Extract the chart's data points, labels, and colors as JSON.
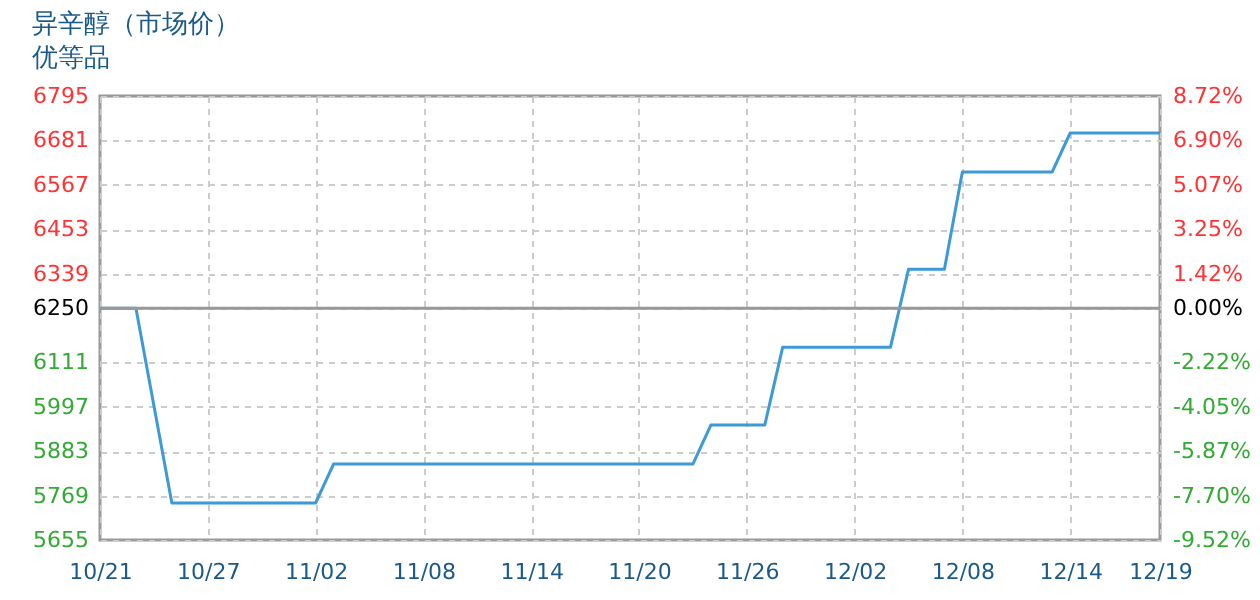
{
  "chart_data": {
    "type": "line",
    "title": "异辛醇（市场价）",
    "subtitle": "优等品",
    "x": [
      "--10-21",
      "--10-23",
      "--10-25",
      "--11-02",
      "--11-03",
      "--11-23",
      "--11-24",
      "--11-27",
      "--11-28",
      "--12-04",
      "--12-05",
      "--12-07",
      "--12-08",
      "--12-13",
      "--12-14",
      "--12-19"
    ],
    "series": [
      {
        "color": "#3d9ad6",
        "values": [
          6250,
          6250,
          5750,
          5750,
          5850,
          5850,
          5950,
          5950,
          6150,
          6150,
          6350,
          6350,
          6600,
          6600,
          6700,
          6700
        ]
      }
    ],
    "xlim": [
      "--10-21",
      "--12-19"
    ],
    "xticks": [
      {
        "value": "--10-21",
        "label": "10/21"
      },
      {
        "value": "--10-27",
        "label": "10/27"
      },
      {
        "value": "--11-02",
        "label": "11/02"
      },
      {
        "value": "--11-08",
        "label": "11/08"
      },
      {
        "value": "--11-14",
        "label": "11/14"
      },
      {
        "value": "--11-20",
        "label": "11/20"
      },
      {
        "value": "--11-26",
        "label": "11/26"
      },
      {
        "value": "--12-02",
        "label": "12/02"
      },
      {
        "value": "--12-08",
        "label": "12/08"
      },
      {
        "value": "--12-14",
        "label": "12/14"
      },
      {
        "value": "--12-19",
        "label": "12/19"
      }
    ],
    "ylim": [
      5655,
      6795
    ],
    "yticks": [
      5655,
      5769,
      5883,
      5997,
      6111,
      6250,
      6339,
      6453,
      6567,
      6681,
      6795
    ],
    "y2lim": [
      -9.52,
      8.72
    ],
    "y2ticks": [
      {
        "value": -9.52,
        "label": "-9.52%"
      },
      {
        "value": -7.7,
        "label": "-7.70%"
      },
      {
        "value": -5.87,
        "label": "-5.87%"
      },
      {
        "value": -4.05,
        "label": "-4.05%"
      },
      {
        "value": -2.22,
        "label": "-2.22%"
      },
      {
        "value": 0,
        "label": "0.00%"
      },
      {
        "value": 1.42,
        "label": "1.42%"
      },
      {
        "value": 3.25,
        "label": "3.25%"
      },
      {
        "value": 5.07,
        "label": "5.07%"
      },
      {
        "value": 6.9,
        "label": "6.90%"
      },
      {
        "value": 8.72,
        "label": "8.72%"
      }
    ],
    "ref_lines": [
      {
        "axis": "y",
        "value": 6250,
        "color": "#999999"
      }
    ],
    "grid": true,
    "marker": "none",
    "line_style": "solid"
  }
}
